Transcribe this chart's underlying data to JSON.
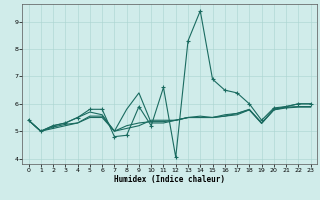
{
  "xlabel": "Humidex (Indice chaleur)",
  "background_color": "#d0ecea",
  "grid_color": "#aad4d0",
  "line_color": "#1a6b60",
  "xlim": [
    -0.5,
    23.5
  ],
  "ylim": [
    3.8,
    9.65
  ],
  "yticks": [
    4,
    5,
    6,
    7,
    8,
    9
  ],
  "xticks": [
    0,
    1,
    2,
    3,
    4,
    5,
    6,
    7,
    8,
    9,
    10,
    11,
    12,
    13,
    14,
    15,
    16,
    17,
    18,
    19,
    20,
    21,
    22,
    23
  ],
  "series_main": [
    5.4,
    5.0,
    5.2,
    5.3,
    5.5,
    5.8,
    5.8,
    4.8,
    4.85,
    5.9,
    5.2,
    6.6,
    4.05,
    8.3,
    9.4,
    6.9,
    6.5,
    6.4,
    6.0,
    5.4,
    5.85,
    5.9,
    6.0,
    6.0
  ],
  "series2": [
    5.4,
    5.0,
    5.2,
    5.3,
    5.5,
    5.7,
    5.6,
    5.0,
    5.8,
    6.4,
    5.3,
    5.3,
    5.4,
    5.5,
    5.55,
    5.5,
    5.6,
    5.65,
    5.8,
    5.3,
    5.8,
    5.9,
    6.0,
    6.0
  ],
  "series3": [
    5.4,
    5.0,
    5.15,
    5.25,
    5.3,
    5.55,
    5.55,
    5.0,
    5.2,
    5.3,
    5.35,
    5.35,
    5.4,
    5.5,
    5.5,
    5.5,
    5.55,
    5.65,
    5.78,
    5.3,
    5.78,
    5.88,
    5.9,
    5.9
  ],
  "series4": [
    5.4,
    5.0,
    5.1,
    5.2,
    5.3,
    5.5,
    5.5,
    5.0,
    5.1,
    5.2,
    5.4,
    5.4,
    5.4,
    5.5,
    5.5,
    5.5,
    5.55,
    5.6,
    5.78,
    5.28,
    5.78,
    5.85,
    5.88,
    5.88
  ]
}
